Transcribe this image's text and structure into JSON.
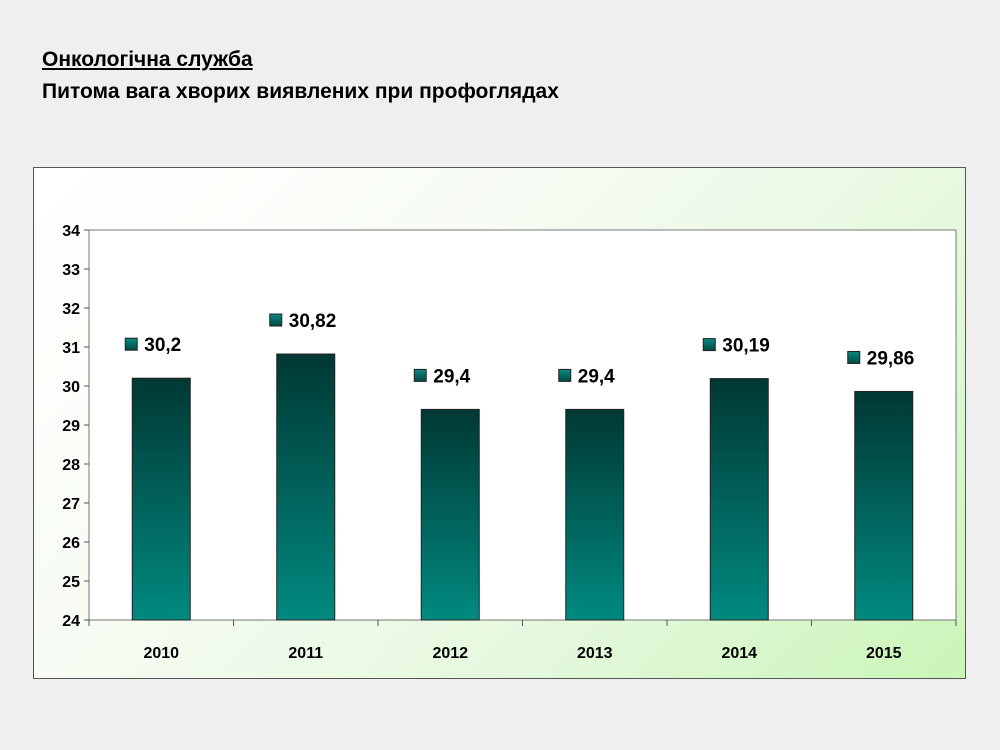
{
  "header": {
    "title": "Онкологічна служба",
    "subtitle": "Питома вага хворих виявлених при профоглядах"
  },
  "chart_data": {
    "type": "bar",
    "categories": [
      "2010",
      "2011",
      "2012",
      "2013",
      "2014",
      "2015"
    ],
    "values": [
      30.2,
      30.82,
      29.4,
      29.4,
      30.19,
      29.86
    ],
    "value_labels": [
      "30,2",
      "30,82",
      "29,4",
      "29,4",
      "30,19",
      "29,86"
    ],
    "ylim": [
      24,
      34
    ],
    "yticks": [
      24,
      25,
      26,
      27,
      28,
      29,
      30,
      31,
      32,
      33,
      34
    ],
    "xlabel": "",
    "ylabel": "",
    "grid": false,
    "legend": "none",
    "colors": {
      "bar_top": "#003833",
      "bar_bottom": "#008a80",
      "marker": "#0a6e66",
      "plot_background": "#ffffff",
      "frame_background_end": "#caf5b8"
    }
  }
}
